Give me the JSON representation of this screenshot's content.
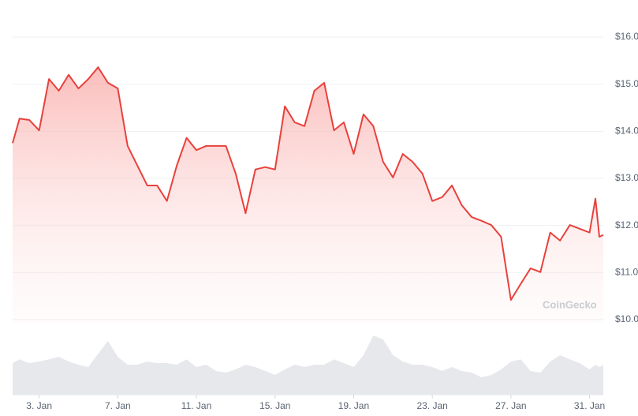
{
  "chart_data": {
    "type": "line",
    "watermark": "CoinGecko",
    "x": [
      1.65,
      2.0,
      2.5,
      3.0,
      3.5,
      4.0,
      4.5,
      5.0,
      5.5,
      6.0,
      6.5,
      7.0,
      7.5,
      8.0,
      8.5,
      9.0,
      9.5,
      10.0,
      10.5,
      11.0,
      11.5,
      12.0,
      12.5,
      13.0,
      13.5,
      14.0,
      14.5,
      15.0,
      15.5,
      16.0,
      16.5,
      17.0,
      17.5,
      18.0,
      18.5,
      19.0,
      19.5,
      20.0,
      20.5,
      21.0,
      21.5,
      22.0,
      22.5,
      23.0,
      23.5,
      24.0,
      24.5,
      25.0,
      25.5,
      26.0,
      26.5,
      27.0,
      27.5,
      28.0,
      28.5,
      29.0,
      29.5,
      30.0,
      30.5,
      31.0,
      31.3,
      31.5,
      31.7
    ],
    "xlim": [
      1.65,
      31.7
    ],
    "xticks": [
      {
        "value": 3,
        "label": "3. Jan"
      },
      {
        "value": 7,
        "label": "7. Jan"
      },
      {
        "value": 11,
        "label": "11. Jan"
      },
      {
        "value": 15,
        "label": "15. Jan"
      },
      {
        "value": 19,
        "label": "19. Jan"
      },
      {
        "value": 23,
        "label": "23. Jan"
      },
      {
        "value": 27,
        "label": "27. Jan"
      },
      {
        "value": 31,
        "label": "31. Jan"
      }
    ],
    "ylim": [
      10,
      16
    ],
    "yticks": [
      {
        "value": 10,
        "label": "$10.0"
      },
      {
        "value": 11,
        "label": "$11.0"
      },
      {
        "value": 12,
        "label": "$12.0"
      },
      {
        "value": 13,
        "label": "$13.0"
      },
      {
        "value": 14,
        "label": "$14.0"
      },
      {
        "value": 15,
        "label": "$15.0"
      },
      {
        "value": 16,
        "label": "$16.0"
      }
    ],
    "y2lim": [
      0,
      100
    ],
    "grid": true,
    "series": [
      {
        "color": "#e8413c",
        "values": [
          13.75,
          14.27,
          14.24,
          14.02,
          15.11,
          14.86,
          15.2,
          14.91,
          15.11,
          15.36,
          15.03,
          14.91,
          13.69,
          13.27,
          12.85,
          12.85,
          12.52,
          13.27,
          13.86,
          13.6,
          13.69,
          13.69,
          13.69,
          13.1,
          12.26,
          13.19,
          13.24,
          13.19,
          14.53,
          14.19,
          14.11,
          14.86,
          15.03,
          14.02,
          14.19,
          13.52,
          14.36,
          14.11,
          13.35,
          13.02,
          13.52,
          13.35,
          13.1,
          12.52,
          12.6,
          12.85,
          12.43,
          12.18,
          12.1,
          12.01,
          11.76,
          10.42,
          10.76,
          11.09,
          11.01,
          11.85,
          11.68,
          12.01,
          11.93,
          11.85,
          12.57,
          11.76,
          11.8
        ]
      },
      {
        "axis": "y2",
        "color": "#e6e8eb",
        "values": [
          50,
          56,
          50,
          52.5,
          56,
          60,
          52.5,
          47.5,
          43.75,
          65,
          85,
          60,
          47.5,
          47.5,
          52.5,
          50,
          50,
          47.5,
          56,
          43.75,
          47.5,
          37.5,
          35,
          40,
          47.5,
          43.75,
          37.5,
          31.25,
          40,
          47.5,
          43.75,
          47.5,
          47.5,
          56,
          50,
          43.75,
          62.5,
          93.75,
          87.5,
          62.5,
          52.5,
          47.5,
          47.5,
          43.75,
          37.5,
          43.75,
          37.5,
          35,
          27.5,
          31.25,
          40,
          52.5,
          56,
          37.5,
          35,
          52.5,
          62.5,
          56,
          50,
          40,
          47.5,
          43.75,
          47.5
        ]
      }
    ]
  }
}
